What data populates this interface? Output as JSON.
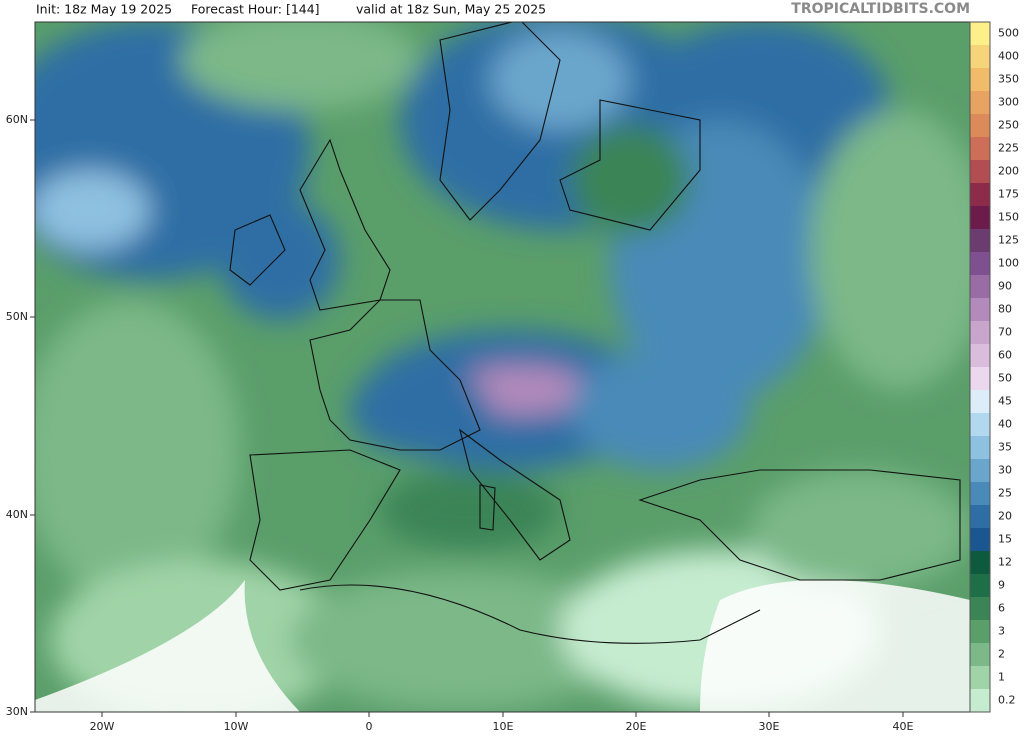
{
  "header": {
    "init": "Init: 18z May 19 2025",
    "forecast_hour": "Forecast Hour: [144]",
    "valid": "valid at 18z Sun, May 25 2025",
    "watermark": "TROPICALTIDBITS.COM"
  },
  "map": {
    "lat_labels": [
      "60N",
      "50N",
      "40N",
      "30N"
    ],
    "lon_labels": [
      "20W",
      "10W",
      "0",
      "10E",
      "20E",
      "30E",
      "40E"
    ]
  },
  "legend": {
    "labels": [
      500,
      400,
      350,
      300,
      250,
      225,
      200,
      175,
      150,
      125,
      100,
      90,
      80,
      70,
      60,
      50,
      45,
      40,
      35,
      30,
      25,
      20,
      15,
      12,
      9,
      6,
      3,
      2,
      1,
      0.2
    ],
    "colors": [
      "#fdf08a",
      "#f6d47a",
      "#f0bc6a",
      "#e8a262",
      "#dc8a5a",
      "#cc6e58",
      "#b24e52",
      "#8c2c4a",
      "#6c1c4a",
      "#6a3c70",
      "#7e5090",
      "#9a6ca6",
      "#b28abc",
      "#c8a6cc",
      "#dabcdc",
      "#ecd8ee",
      "#dcecf8",
      "#b2d8f0",
      "#8ec0e0",
      "#6aa6cc",
      "#4a8ab8",
      "#2e6ea4",
      "#1a5690",
      "#0e5a3e",
      "#1e6e48",
      "#3a8456",
      "#5a9e6a",
      "#7cb888",
      "#a0d4a8",
      "#c6ecd0"
    ]
  }
}
